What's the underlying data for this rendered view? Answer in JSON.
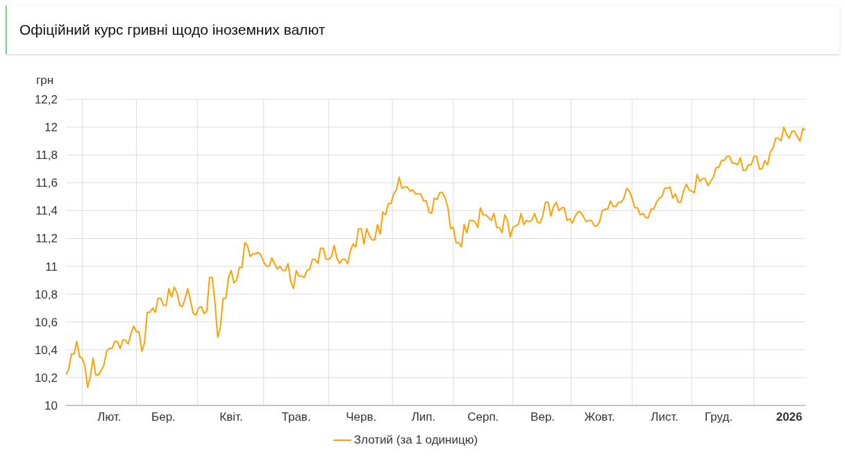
{
  "chart_data": {
    "type": "line",
    "title": "Офіційний курс гривні щодо іноземних валют",
    "ylabel": "грн",
    "categories": [
      null,
      null,
      null,
      null,
      null,
      null,
      null,
      null,
      null,
      null,
      null,
      null,
      null,
      null,
      null,
      null,
      "Лют.",
      null,
      null,
      null,
      null,
      null,
      null,
      null,
      null,
      null,
      null,
      null,
      null,
      null,
      null,
      null,
      null,
      null,
      null,
      null,
      "Бер.",
      null,
      null,
      null,
      null,
      null,
      null,
      null,
      null,
      null,
      null,
      null,
      null,
      null,
      null,
      null,
      null,
      null,
      null,
      null,
      null,
      null,
      null,
      null,
      null,
      "Квіт.",
      null,
      null,
      null,
      null,
      null,
      null,
      null,
      null,
      null,
      null,
      null,
      null,
      null,
      null,
      null,
      null,
      null,
      null,
      null,
      null,
      null,
      null,
      null,
      "Трав.",
      null,
      null,
      null,
      null,
      null,
      null,
      null,
      null,
      null,
      null,
      null,
      null,
      null,
      null,
      null,
      null,
      null,
      null,
      null,
      null,
      null,
      null,
      null,
      "Черв.",
      null,
      null,
      null,
      null,
      null,
      null,
      null,
      null,
      null,
      null,
      null,
      null,
      null,
      null,
      null,
      null,
      null,
      null,
      null,
      null,
      null,
      null,
      "Лип.",
      null,
      null,
      null,
      null,
      null,
      null,
      null,
      null,
      null,
      null,
      null,
      null,
      null,
      null,
      null,
      null,
      null,
      null,
      null,
      null,
      null,
      "Серп.",
      null,
      null,
      null,
      null,
      null,
      null,
      null,
      null,
      null,
      null,
      null,
      null,
      null,
      null,
      null,
      null,
      null,
      null,
      null,
      null,
      null,
      "Вер.",
      null,
      null,
      null,
      null,
      null,
      null,
      null,
      null,
      null,
      null,
      null,
      null,
      null,
      null,
      null,
      null,
      null,
      null,
      null,
      null,
      "Жовт.",
      null,
      null,
      null,
      null,
      null,
      null,
      null,
      null,
      null,
      null,
      null,
      null,
      null,
      null,
      null,
      null,
      null,
      null,
      null,
      null,
      null,
      null,
      null,
      "Лист.",
      null,
      null,
      null,
      null,
      null,
      null,
      null,
      null,
      null,
      null,
      null,
      null,
      null,
      null,
      null,
      null,
      null,
      null,
      null,
      "Груд.",
      null,
      null,
      null,
      null,
      null,
      null,
      null,
      null,
      null,
      null,
      null,
      null,
      null,
      null,
      null,
      null,
      null,
      null,
      null,
      null,
      null,
      null,
      null,
      null,
      null,
      "2026",
      null,
      null,
      null,
      null,
      null,
      null
    ],
    "series": [
      {
        "name": "Злотий (за 1 одиницю)",
        "color": "#ffa000",
        "values": [
          10.22,
          10.26,
          10.37,
          10.37,
          10.46,
          10.35,
          10.34,
          10.28,
          10.13,
          10.21,
          10.34,
          10.22,
          10.22,
          10.25,
          10.29,
          10.39,
          10.41,
          10.41,
          10.46,
          10.46,
          10.41,
          10.47,
          10.47,
          10.44,
          10.52,
          10.57,
          10.53,
          10.53,
          10.39,
          10.45,
          10.67,
          10.67,
          10.7,
          10.67,
          10.77,
          10.77,
          10.72,
          10.72,
          10.84,
          10.78,
          10.85,
          10.81,
          10.72,
          10.71,
          10.77,
          10.84,
          10.75,
          10.66,
          10.65,
          10.7,
          10.71,
          10.66,
          10.68,
          10.92,
          10.92,
          10.74,
          10.49,
          10.56,
          10.77,
          10.77,
          10.92,
          10.97,
          10.88,
          10.9,
          10.99,
          10.99,
          11.17,
          11.15,
          11.07,
          11.09,
          11.09,
          11.1,
          11.08,
          11.03,
          11.0,
          11.0,
          11.06,
          11.02,
          10.98,
          11.0,
          10.97,
          10.97,
          11.02,
          10.89,
          10.84,
          10.97,
          10.93,
          10.93,
          10.92,
          10.97,
          10.98,
          11.05,
          11.05,
          11.02,
          11.13,
          11.13,
          11.05,
          11.05,
          11.07,
          11.15,
          11.06,
          11.02,
          11.05,
          11.05,
          11.02,
          11.11,
          11.16,
          11.14,
          11.27,
          11.27,
          11.16,
          11.27,
          11.22,
          11.19,
          11.19,
          11.3,
          11.23,
          11.39,
          11.37,
          11.45,
          11.45,
          11.52,
          11.55,
          11.64,
          11.56,
          11.57,
          11.57,
          11.54,
          11.55,
          11.52,
          11.52,
          11.52,
          11.47,
          11.47,
          11.39,
          11.38,
          11.49,
          11.48,
          11.53,
          11.53,
          11.49,
          11.42,
          11.27,
          11.28,
          11.17,
          11.17,
          11.14,
          11.3,
          11.24,
          11.33,
          11.33,
          11.32,
          11.28,
          11.42,
          11.37,
          11.37,
          11.35,
          11.33,
          11.38,
          11.28,
          11.28,
          11.24,
          11.37,
          11.33,
          11.21,
          11.28,
          11.29,
          11.3,
          11.38,
          11.3,
          11.33,
          11.32,
          11.33,
          11.38,
          11.32,
          11.31,
          11.36,
          11.46,
          11.46,
          11.36,
          11.43,
          11.46,
          11.4,
          11.42,
          11.42,
          11.33,
          11.34,
          11.31,
          11.36,
          11.39,
          11.39,
          11.36,
          11.32,
          11.33,
          11.33,
          11.29,
          11.29,
          11.32,
          11.4,
          11.41,
          11.41,
          11.47,
          11.43,
          11.43,
          11.46,
          11.46,
          11.49,
          11.56,
          11.54,
          11.49,
          11.42,
          11.42,
          11.37,
          11.38,
          11.35,
          11.35,
          11.41,
          11.41,
          11.46,
          11.49,
          11.5,
          11.56,
          11.56,
          11.57,
          11.49,
          11.52,
          11.46,
          11.46,
          11.54,
          11.59,
          11.55,
          11.54,
          11.53,
          11.66,
          11.61,
          11.63,
          11.63,
          11.58,
          11.61,
          11.64,
          11.71,
          11.71,
          11.76,
          11.76,
          11.79,
          11.79,
          11.74,
          11.74,
          11.73,
          11.78,
          11.69,
          11.69,
          11.73,
          11.73,
          11.79,
          11.79,
          11.7,
          11.7,
          11.76,
          11.73,
          11.82,
          11.85,
          11.92,
          11.92,
          11.9,
          12.0,
          11.95,
          11.92,
          11.97,
          11.97,
          11.93,
          11.9,
          11.99,
          11.98
        ]
      }
    ],
    "ylim": [
      10,
      12.2
    ],
    "yticks": [
      10,
      {
        "value": 10.2,
        "label": "10,2"
      },
      {
        "value": 10.4,
        "label": "10,4"
      },
      {
        "value": 10.6,
        "label": "10,6"
      },
      {
        "value": 10.8,
        "label": "10,8"
      },
      11,
      {
        "value": 11.2,
        "label": "11,2"
      },
      {
        "value": 11.4,
        "label": "11,4"
      },
      {
        "value": 11.6,
        "label": "11,6"
      },
      {
        "value": 11.8,
        "label": "11,8"
      },
      12,
      {
        "value": 12.2,
        "label": "12,2"
      }
    ],
    "grid": true,
    "legend": "bottom",
    "marker": "none",
    "line_style": "solid"
  }
}
